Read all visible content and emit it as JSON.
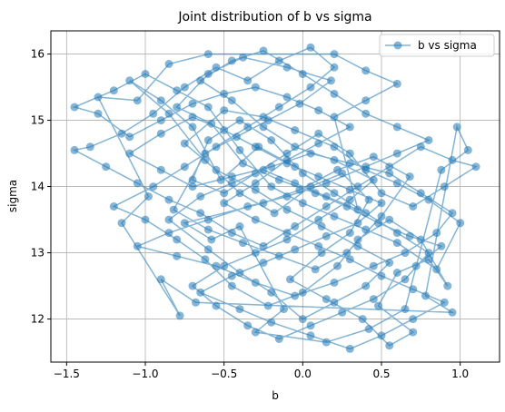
{
  "chart_data": {
    "type": "line",
    "title": "Joint distribution of b vs sigma",
    "xlabel": "b",
    "ylabel": "sigma",
    "xlim": [
      -1.6,
      1.25
    ],
    "ylim": [
      11.35,
      16.35
    ],
    "xticks": [
      -1.5,
      -1.0,
      -0.5,
      0.0,
      0.5,
      1.0
    ],
    "xtick_labels": [
      "−1.5",
      "−1.0",
      "−0.5",
      "0.0",
      "0.5",
      "1.0"
    ],
    "yticks": [
      12,
      13,
      14,
      15,
      16
    ],
    "ytick_labels": [
      "12",
      "13",
      "14",
      "15",
      "16"
    ],
    "grid": true,
    "legend": {
      "position": "top-right",
      "entries": [
        "b vs sigma"
      ]
    },
    "series": [
      {
        "name": "b vs sigma",
        "color": "#1f77b4",
        "marker": "circle",
        "alpha": 0.55,
        "points": [
          [
            -0.05,
            14.3
          ],
          [
            -0.28,
            14.6
          ],
          [
            -0.52,
            14.1
          ],
          [
            -0.7,
            14.9
          ],
          [
            -0.9,
            15.3
          ],
          [
            -1.1,
            15.6
          ],
          [
            -0.85,
            15.1
          ],
          [
            -0.62,
            14.4
          ],
          [
            -0.4,
            13.9
          ],
          [
            -0.18,
            13.6
          ],
          [
            0.05,
            14.0
          ],
          [
            0.25,
            14.2
          ],
          [
            0.42,
            13.8
          ],
          [
            0.3,
            13.3
          ],
          [
            0.12,
            13.0
          ],
          [
            -0.08,
            12.6
          ],
          [
            0.15,
            12.3
          ],
          [
            0.38,
            12.0
          ],
          [
            0.55,
            11.6
          ],
          [
            0.7,
            11.8
          ],
          [
            0.48,
            12.2
          ],
          [
            0.6,
            12.7
          ],
          [
            0.8,
            12.9
          ],
          [
            0.92,
            12.5
          ],
          [
            0.75,
            13.2
          ],
          [
            0.55,
            13.5
          ],
          [
            0.35,
            13.2
          ],
          [
            0.22,
            12.8
          ],
          [
            0.0,
            12.4
          ],
          [
            -0.22,
            12.2
          ],
          [
            -0.45,
            12.5
          ],
          [
            -0.62,
            12.9
          ],
          [
            -0.8,
            13.2
          ],
          [
            -1.0,
            13.5
          ],
          [
            -1.2,
            13.7
          ],
          [
            -0.95,
            14.0
          ],
          [
            -0.75,
            14.3
          ],
          [
            -0.55,
            14.6
          ],
          [
            -0.35,
            14.9
          ],
          [
            -0.15,
            15.2
          ],
          [
            0.05,
            15.5
          ],
          [
            0.2,
            15.8
          ],
          [
            0.05,
            16.1
          ],
          [
            -0.15,
            15.9
          ],
          [
            -0.35,
            15.6
          ],
          [
            -0.55,
            15.8
          ],
          [
            -0.75,
            15.5
          ],
          [
            -0.95,
            15.1
          ],
          [
            -1.15,
            14.8
          ],
          [
            -1.35,
            14.6
          ],
          [
            -1.45,
            14.55
          ],
          [
            -1.25,
            14.3
          ],
          [
            -1.05,
            14.05
          ],
          [
            -0.85,
            13.8
          ],
          [
            -0.65,
            13.6
          ],
          [
            -0.45,
            13.3
          ],
          [
            -0.25,
            13.1
          ],
          [
            -0.05,
            13.4
          ],
          [
            0.15,
            13.7
          ],
          [
            0.35,
            14.0
          ],
          [
            0.55,
            14.3
          ],
          [
            0.75,
            14.6
          ],
          [
            0.95,
            14.4
          ],
          [
            1.1,
            14.3
          ],
          [
            0.9,
            14.0
          ],
          [
            0.7,
            13.7
          ],
          [
            0.5,
            13.9
          ],
          [
            0.3,
            14.5
          ],
          [
            0.1,
            14.8
          ],
          [
            -0.1,
            14.5
          ],
          [
            -0.3,
            14.2
          ],
          [
            -0.5,
            13.9
          ],
          [
            -0.7,
            14.1
          ],
          [
            -0.6,
            14.7
          ],
          [
            -0.4,
            15.0
          ],
          [
            -0.2,
            14.7
          ],
          [
            0.0,
            14.2
          ],
          [
            0.2,
            13.9
          ],
          [
            0.4,
            13.6
          ],
          [
            0.6,
            13.3
          ],
          [
            0.8,
            13.0
          ],
          [
            0.65,
            12.6
          ],
          [
            0.45,
            12.3
          ],
          [
            0.25,
            12.1
          ],
          [
            0.05,
            11.9
          ],
          [
            -0.15,
            11.7
          ],
          [
            -0.35,
            11.9
          ],
          [
            -0.55,
            12.2
          ],
          [
            -0.7,
            12.5
          ],
          [
            -0.5,
            12.8
          ],
          [
            -0.3,
            13.0
          ],
          [
            -0.1,
            13.2
          ],
          [
            0.1,
            13.5
          ],
          [
            0.3,
            13.8
          ],
          [
            0.45,
            14.1
          ],
          [
            0.2,
            14.4
          ],
          [
            -0.05,
            14.6
          ],
          [
            -0.25,
            14.9
          ],
          [
            -0.45,
            15.3
          ],
          [
            -0.65,
            15.6
          ],
          [
            -0.45,
            15.9
          ],
          [
            -0.25,
            16.05
          ],
          [
            0.0,
            15.7
          ],
          [
            0.2,
            15.4
          ],
          [
            0.4,
            15.1
          ],
          [
            0.6,
            14.9
          ],
          [
            0.8,
            14.7
          ],
          [
            0.6,
            14.5
          ],
          [
            0.4,
            14.3
          ],
          [
            0.15,
            14.05
          ],
          [
            -0.1,
            13.85
          ],
          [
            -0.35,
            13.7
          ],
          [
            -0.6,
            13.5
          ],
          [
            -0.85,
            13.3
          ],
          [
            -1.05,
            13.1
          ],
          [
            -0.8,
            12.95
          ],
          [
            -0.55,
            12.8
          ],
          [
            -0.3,
            12.55
          ],
          [
            -0.05,
            12.35
          ],
          [
            0.2,
            12.55
          ],
          [
            0.45,
            12.8
          ],
          [
            0.65,
            13.0
          ],
          [
            0.85,
            13.3
          ],
          [
            0.95,
            13.6
          ],
          [
            0.75,
            13.9
          ],
          [
            0.55,
            14.2
          ],
          [
            0.3,
            14.35
          ],
          [
            0.05,
            14.5
          ],
          [
            -0.2,
            14.3
          ],
          [
            -0.45,
            14.15
          ],
          [
            -0.7,
            14.0
          ],
          [
            -0.9,
            14.25
          ],
          [
            -1.1,
            14.5
          ],
          [
            -0.9,
            14.8
          ],
          [
            -0.7,
            15.05
          ],
          [
            -0.5,
            14.85
          ],
          [
            -0.3,
            14.6
          ],
          [
            -0.1,
            14.35
          ],
          [
            0.1,
            14.15
          ],
          [
            0.3,
            13.95
          ],
          [
            0.5,
            13.75
          ],
          [
            0.35,
            13.45
          ],
          [
            0.15,
            13.25
          ],
          [
            -0.05,
            13.05
          ],
          [
            -0.25,
            12.85
          ],
          [
            -0.45,
            12.65
          ],
          [
            -0.65,
            12.4
          ],
          [
            -0.4,
            12.15
          ],
          [
            -0.2,
            11.95
          ],
          [
            0.05,
            11.75
          ],
          [
            0.3,
            11.55
          ],
          [
            0.5,
            11.75
          ],
          [
            0.7,
            12.0
          ],
          [
            0.9,
            12.25
          ],
          [
            0.7,
            12.45
          ],
          [
            0.5,
            12.65
          ],
          [
            0.3,
            12.9
          ],
          [
            0.1,
            13.1
          ],
          [
            -0.1,
            13.3
          ],
          [
            -0.3,
            13.5
          ],
          [
            -0.5,
            13.75
          ],
          [
            -0.3,
            14.05
          ],
          [
            -0.1,
            14.4
          ],
          [
            0.1,
            14.65
          ],
          [
            0.3,
            14.9
          ],
          [
            0.1,
            15.15
          ],
          [
            -0.1,
            15.35
          ],
          [
            -0.3,
            15.5
          ],
          [
            -0.5,
            15.4
          ],
          [
            -0.7,
            15.25
          ],
          [
            -0.9,
            15.0
          ],
          [
            -1.1,
            14.75
          ],
          [
            -1.3,
            15.1
          ],
          [
            -1.45,
            15.2
          ],
          [
            -1.2,
            15.45
          ],
          [
            -1.0,
            15.7
          ],
          [
            -0.8,
            15.45
          ],
          [
            -0.6,
            15.2
          ],
          [
            -0.4,
            14.55
          ],
          [
            -0.2,
            14.0
          ],
          [
            0.0,
            13.75
          ],
          [
            0.2,
            13.55
          ],
          [
            0.4,
            13.35
          ],
          [
            0.6,
            13.15
          ],
          [
            0.85,
            12.75
          ],
          [
            1.0,
            13.45
          ],
          [
            0.8,
            13.8
          ],
          [
            0.6,
            14.05
          ],
          [
            0.4,
            14.25
          ],
          [
            0.2,
            14.6
          ],
          [
            -0.05,
            14.85
          ],
          [
            -0.25,
            15.05
          ],
          [
            -0.5,
            15.15
          ],
          [
            -0.75,
            14.65
          ],
          [
            -0.55,
            14.25
          ],
          [
            -0.3,
            13.95
          ],
          [
            -0.1,
            13.65
          ],
          [
            0.12,
            13.4
          ],
          [
            0.35,
            13.1
          ],
          [
            0.55,
            12.85
          ],
          [
            0.4,
            12.5
          ],
          [
            0.2,
            12.25
          ],
          [
            0.0,
            12.0
          ],
          [
            -0.2,
            12.4
          ],
          [
            -0.4,
            12.7
          ],
          [
            -0.6,
            13.05
          ],
          [
            -0.85,
            13.5
          ],
          [
            -0.65,
            13.85
          ],
          [
            -0.45,
            14.05
          ],
          [
            -0.25,
            14.25
          ],
          [
            -0.05,
            14.05
          ],
          [
            0.15,
            13.85
          ],
          [
            0.35,
            13.65
          ],
          [
            0.2,
            15.05
          ],
          [
            0.4,
            15.3
          ],
          [
            0.6,
            15.55
          ],
          [
            0.4,
            15.75
          ],
          [
            0.2,
            16.0
          ],
          [
            -0.6,
            16.0
          ],
          [
            -0.85,
            15.85
          ],
          [
            -1.05,
            15.3
          ],
          [
            -1.3,
            15.35
          ],
          [
            -0.98,
            13.85
          ],
          [
            -1.15,
            13.45
          ],
          [
            -0.78,
            12.05
          ],
          [
            -0.9,
            12.6
          ],
          [
            -0.68,
            12.25
          ],
          [
            0.95,
            12.1
          ],
          [
            0.78,
            12.35
          ],
          [
            0.98,
            14.9
          ],
          [
            1.05,
            14.55
          ],
          [
            0.88,
            14.25
          ],
          [
            0.65,
            12.15
          ],
          [
            0.42,
            11.85
          ],
          [
            0.15,
            11.65
          ],
          [
            -0.3,
            11.8
          ],
          [
            -0.12,
            12.15
          ],
          [
            -0.4,
            13.4
          ],
          [
            -0.58,
            13.2
          ],
          [
            -0.75,
            13.45
          ],
          [
            -0.25,
            13.75
          ],
          [
            -0.02,
            13.95
          ],
          [
            0.22,
            14.25
          ],
          [
            0.45,
            14.45
          ],
          [
            0.68,
            14.15
          ],
          [
            0.5,
            13.55
          ],
          [
            0.28,
            13.0
          ],
          [
            0.08,
            12.75
          ],
          [
            -0.15,
            12.95
          ],
          [
            -0.38,
            13.15
          ],
          [
            -0.6,
            13.35
          ],
          [
            -0.82,
            13.65
          ],
          [
            -0.62,
            14.5
          ],
          [
            -0.42,
            14.75
          ],
          [
            -0.22,
            15.0
          ],
          [
            -0.02,
            15.25
          ],
          [
            0.18,
            15.6
          ],
          [
            -0.1,
            15.8
          ],
          [
            -0.38,
            15.95
          ],
          [
            -0.6,
            15.7
          ],
          [
            -0.8,
            15.2
          ],
          [
            -0.58,
            14.95
          ],
          [
            -0.38,
            14.35
          ],
          [
            -0.15,
            14.1
          ],
          [
            0.08,
            13.9
          ],
          [
            0.28,
            13.7
          ],
          [
            0.48,
            13.45
          ],
          [
            0.68,
            13.25
          ],
          [
            0.88,
            13.1
          ],
          [
            0.72,
            12.8
          ]
        ]
      }
    ]
  }
}
